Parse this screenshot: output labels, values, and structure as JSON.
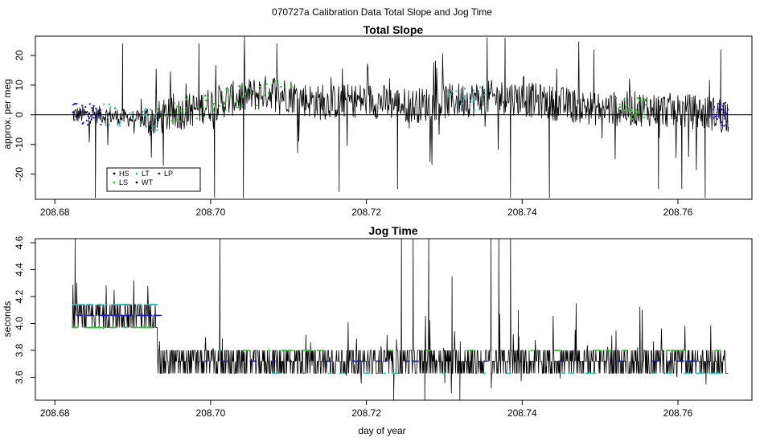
{
  "page": {
    "title": "070727a   Calibration Data Total Slope and Jog Time"
  },
  "colors": {
    "HS": "#000000",
    "LS": "#22cc22",
    "LT": "#22bbbb",
    "WT": "#111111",
    "LP": "#1a1acc",
    "line": "#000000"
  },
  "chart_data": [
    {
      "type": "line",
      "title": "Total Slope",
      "xlabel": "",
      "ylabel": "approx. per meg",
      "xlim": [
        208.6775,
        208.7695
      ],
      "ylim": [
        -28.5,
        26.5
      ],
      "xticks": [
        208.68,
        208.7,
        208.72,
        208.74,
        208.76
      ],
      "xtick_labels": [
        "208.68",
        "208.70",
        "208.72",
        "208.74",
        "208.76"
      ],
      "yticks": [
        -20,
        -10,
        0,
        10,
        20
      ],
      "ytick_labels": [
        "-20",
        "-10",
        "0",
        "10",
        "20"
      ],
      "hline": 0,
      "grid": false,
      "legend": {
        "placement": "bottom-left",
        "entries": [
          {
            "label": "HS",
            "color_key": "HS"
          },
          {
            "label": "LS",
            "color_key": "LS"
          },
          {
            "label": "LT",
            "color_key": "LT"
          },
          {
            "label": "WT",
            "color_key": "WT"
          },
          {
            "label": "LP",
            "color_key": "LP"
          }
        ]
      },
      "series_note": "dense black trace sampled ~every 5 s from day 208.6822 to 208.7665",
      "x_range": [
        208.6822,
        208.7665
      ],
      "keypoints": [
        {
          "x": 208.6822,
          "y": 0
        },
        {
          "x": 208.686,
          "y": 0
        },
        {
          "x": 208.692,
          "y": -2
        },
        {
          "x": 208.698,
          "y": 2
        },
        {
          "x": 208.702,
          "y": 5
        },
        {
          "x": 208.708,
          "y": 8
        },
        {
          "x": 208.714,
          "y": 4
        },
        {
          "x": 208.72,
          "y": 5
        },
        {
          "x": 208.726,
          "y": 3
        },
        {
          "x": 208.732,
          "y": 5
        },
        {
          "x": 208.738,
          "y": 6
        },
        {
          "x": 208.744,
          "y": 4
        },
        {
          "x": 208.75,
          "y": 2
        },
        {
          "x": 208.756,
          "y": 2
        },
        {
          "x": 208.762,
          "y": 1
        },
        {
          "x": 208.7665,
          "y": 0
        }
      ],
      "spikes": [
        {
          "x": 208.6852,
          "y": -28
        },
        {
          "x": 208.6887,
          "y": 24
        },
        {
          "x": 208.6985,
          "y": 24
        },
        {
          "x": 208.7005,
          "y": -28
        },
        {
          "x": 208.7042,
          "y": -28
        },
        {
          "x": 208.7085,
          "y": 24
        },
        {
          "x": 208.7165,
          "y": -26
        },
        {
          "x": 208.724,
          "y": -25
        },
        {
          "x": 208.7355,
          "y": 26
        },
        {
          "x": 208.7378,
          "y": 26
        },
        {
          "x": 208.7385,
          "y": -28
        },
        {
          "x": 208.7435,
          "y": -28
        },
        {
          "x": 208.7492,
          "y": 22
        },
        {
          "x": 208.7575,
          "y": -25
        },
        {
          "x": 208.7605,
          "y": -25
        },
        {
          "x": 208.7635,
          "y": -28
        },
        {
          "x": 208.7655,
          "y": 22
        }
      ]
    },
    {
      "type": "line",
      "title": "Jog Time",
      "xlabel": "day of year",
      "ylabel": "seconds",
      "xlim": [
        208.6775,
        208.7695
      ],
      "ylim": [
        3.43,
        4.63
      ],
      "xticks": [
        208.68,
        208.7,
        208.72,
        208.74,
        208.76
      ],
      "xtick_labels": [
        "208.68",
        "208.70",
        "208.72",
        "208.74",
        "208.76"
      ],
      "yticks": [
        3.6,
        3.8,
        4.0,
        4.2,
        4.4,
        4.6
      ],
      "ytick_labels": [
        "3.6",
        "3.8",
        "4.0",
        "4.2",
        "4.4",
        "4.6"
      ],
      "grid": false,
      "levels": [
        {
          "x_start": 208.6822,
          "x_end": 208.6932,
          "low": 3.97,
          "mid": 4.06,
          "high": 4.14
        },
        {
          "x_start": 208.6932,
          "x_end": 208.7665,
          "low": 3.63,
          "mid": 3.72,
          "high": 3.8
        }
      ],
      "spikes": [
        {
          "x": 208.6826,
          "y": 4.63
        },
        {
          "x": 208.7012,
          "y": 4.63
        },
        {
          "x": 208.7245,
          "y": 4.63
        },
        {
          "x": 208.726,
          "y": 4.63
        },
        {
          "x": 208.728,
          "y": 4.63
        },
        {
          "x": 208.736,
          "y": 4.63
        },
        {
          "x": 208.737,
          "y": 4.63
        },
        {
          "x": 208.7385,
          "y": 4.63
        },
        {
          "x": 208.731,
          "y": 4.35
        },
        {
          "x": 208.7395,
          "y": 4.1
        },
        {
          "x": 208.7235,
          "y": 3.43
        },
        {
          "x": 208.7275,
          "y": 3.43
        },
        {
          "x": 208.732,
          "y": 3.43
        }
      ]
    }
  ]
}
